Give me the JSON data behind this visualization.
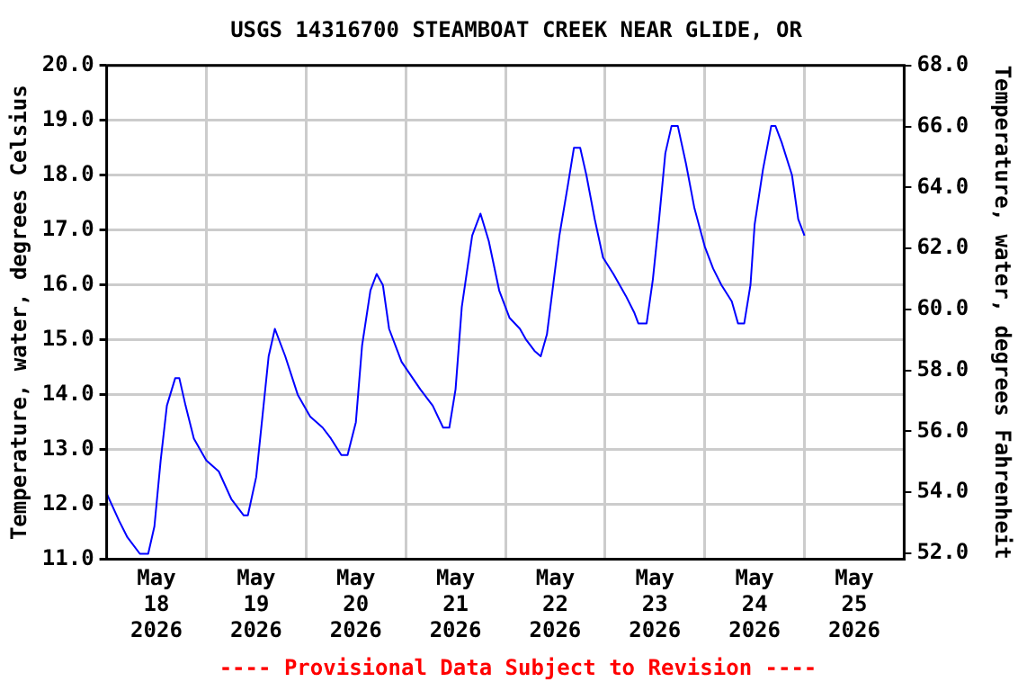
{
  "chart_data": {
    "type": "line",
    "title": "USGS 14316700 STEAMBOAT CREEK NEAR GLIDE, OR",
    "ylabel": "Temperature, water, degrees Celsius",
    "y2label": "Temperature, water, degrees Fahrenheit",
    "annotations": [
      "---- Provisional Data Subject to Revision ----"
    ],
    "x": [
      "2026-05-18T00:00",
      "2026-05-18T03:00",
      "2026-05-18T05:00",
      "2026-05-18T08:00",
      "2026-05-18T10:00",
      "2026-05-18T11:30",
      "2026-05-18T13:00",
      "2026-05-18T14:30",
      "2026-05-18T16:30",
      "2026-05-18T17:30",
      "2026-05-18T19:00",
      "2026-05-18T21:00",
      "2026-05-19T00:00",
      "2026-05-19T03:00",
      "2026-05-19T06:00",
      "2026-05-19T09:00",
      "2026-05-19T10:00",
      "2026-05-19T12:00",
      "2026-05-19T13:30",
      "2026-05-19T15:00",
      "2026-05-19T16:30",
      "2026-05-19T19:00",
      "2026-05-19T22:00",
      "2026-05-20T01:00",
      "2026-05-20T04:00",
      "2026-05-20T06:00",
      "2026-05-20T08:30",
      "2026-05-20T10:00",
      "2026-05-20T12:00",
      "2026-05-20T13:30",
      "2026-05-20T15:30",
      "2026-05-20T17:00",
      "2026-05-20T18:30",
      "2026-05-20T20:00",
      "2026-05-20T23:00",
      "2026-05-21T03:30",
      "2026-05-21T06:30",
      "2026-05-21T09:00",
      "2026-05-21T10:30",
      "2026-05-21T12:00",
      "2026-05-21T13:30",
      "2026-05-21T16:00",
      "2026-05-21T18:00",
      "2026-05-21T20:00",
      "2026-05-21T22:30",
      "2026-05-22T01:00",
      "2026-05-22T03:30",
      "2026-05-22T05:00",
      "2026-05-22T07:00",
      "2026-05-22T08:30",
      "2026-05-22T10:00",
      "2026-05-22T11:30",
      "2026-05-22T13:00",
      "2026-05-22T15:00",
      "2026-05-22T16:30",
      "2026-05-22T18:00",
      "2026-05-22T19:30",
      "2026-05-22T21:30",
      "2026-05-22T23:30",
      "2026-05-23T02:00",
      "2026-05-23T05:00",
      "2026-05-23T07:00",
      "2026-05-23T08:00",
      "2026-05-23T10:00",
      "2026-05-23T11:30",
      "2026-05-23T13:00",
      "2026-05-23T14:30",
      "2026-05-23T16:00",
      "2026-05-23T17:30",
      "2026-05-23T19:30",
      "2026-05-23T21:30",
      "2026-05-24T00:00",
      "2026-05-24T02:00",
      "2026-05-24T04:00",
      "2026-05-24T06:30",
      "2026-05-24T08:00",
      "2026-05-24T09:30",
      "2026-05-24T11:00",
      "2026-05-24T12:00",
      "2026-05-24T14:00",
      "2026-05-24T16:00",
      "2026-05-24T17:00",
      "2026-05-24T18:30",
      "2026-05-24T21:00",
      "2026-05-24T22:30",
      "2026-05-25T00:00"
    ],
    "series": [
      {
        "color": "#0000ff",
        "values": [
          12.2,
          11.7,
          11.4,
          11.1,
          11.1,
          11.6,
          12.8,
          13.8,
          14.3,
          14.3,
          13.8,
          13.2,
          12.8,
          12.6,
          12.1,
          11.8,
          11.8,
          12.5,
          13.6,
          14.7,
          15.2,
          14.7,
          14.0,
          13.6,
          13.4,
          13.2,
          12.9,
          12.9,
          13.5,
          14.9,
          15.9,
          16.2,
          16.0,
          15.2,
          14.6,
          14.1,
          13.8,
          13.4,
          13.4,
          14.1,
          15.6,
          16.9,
          17.3,
          16.8,
          15.9,
          15.4,
          15.2,
          15.0,
          14.8,
          14.7,
          15.1,
          16.0,
          16.9,
          17.8,
          18.5,
          18.5,
          18.0,
          17.2,
          16.5,
          16.2,
          15.8,
          15.5,
          15.3,
          15.3,
          16.1,
          17.2,
          18.4,
          18.9,
          18.9,
          18.2,
          17.4,
          16.7,
          16.3,
          16.0,
          15.7,
          15.3,
          15.3,
          16.0,
          17.1,
          18.1,
          18.9,
          18.9,
          18.6,
          18.0,
          17.2,
          16.9
        ]
      }
    ],
    "xlim": [
      "2026-05-18T00:00",
      "2026-05-26T00:00"
    ],
    "xticks": [
      {
        "value": "2026-05-18T12:00",
        "label": "May 18 2026"
      },
      {
        "value": "2026-05-19T00:00",
        "label": null
      },
      {
        "value": "2026-05-19T12:00",
        "label": "May 19 2026"
      },
      {
        "value": "2026-05-20T00:00",
        "label": null
      },
      {
        "value": "2026-05-20T12:00",
        "label": "May 20 2026"
      },
      {
        "value": "2026-05-21T00:00",
        "label": null
      },
      {
        "value": "2026-05-21T12:00",
        "label": "May 21 2026"
      },
      {
        "value": "2026-05-22T00:00",
        "label": null
      },
      {
        "value": "2026-05-22T12:00",
        "label": "May 22 2026"
      },
      {
        "value": "2026-05-23T00:00",
        "label": null
      },
      {
        "value": "2026-05-23T12:00",
        "label": "May 23 2026"
      },
      {
        "value": "2026-05-24T00:00",
        "label": null
      },
      {
        "value": "2026-05-24T12:00",
        "label": "May 24 2026"
      },
      {
        "value": "2026-05-25T00:00",
        "label": null
      },
      {
        "value": "2026-05-25T12:00",
        "label": "May 25 2026"
      }
    ],
    "ylim": [
      11,
      20
    ],
    "yticks": [
      {
        "value": 11,
        "label": "11.0"
      },
      {
        "value": 12,
        "label": "12.0"
      },
      {
        "value": 13,
        "label": "13.0"
      },
      {
        "value": 14,
        "label": "14.0"
      },
      {
        "value": 15,
        "label": "15.0"
      },
      {
        "value": 16,
        "label": "16.0"
      },
      {
        "value": 17,
        "label": "17.0"
      },
      {
        "value": 18,
        "label": "18.0"
      },
      {
        "value": 19,
        "label": "19.0"
      },
      {
        "value": 20,
        "label": "20.0"
      }
    ],
    "y2lim": [
      51.8,
      68
    ],
    "y2ticks": [
      {
        "value": 52,
        "label": "52.0"
      },
      {
        "value": 54,
        "label": "54.0"
      },
      {
        "value": 56,
        "label": "56.0"
      },
      {
        "value": 58,
        "label": "58.0"
      },
      {
        "value": 60,
        "label": "60.0"
      },
      {
        "value": 62,
        "label": "62.0"
      },
      {
        "value": 64,
        "label": "64.0"
      },
      {
        "value": 66,
        "label": "66.0"
      },
      {
        "value": 68,
        "label": "68.0"
      }
    ],
    "grid": true,
    "legend": false
  }
}
